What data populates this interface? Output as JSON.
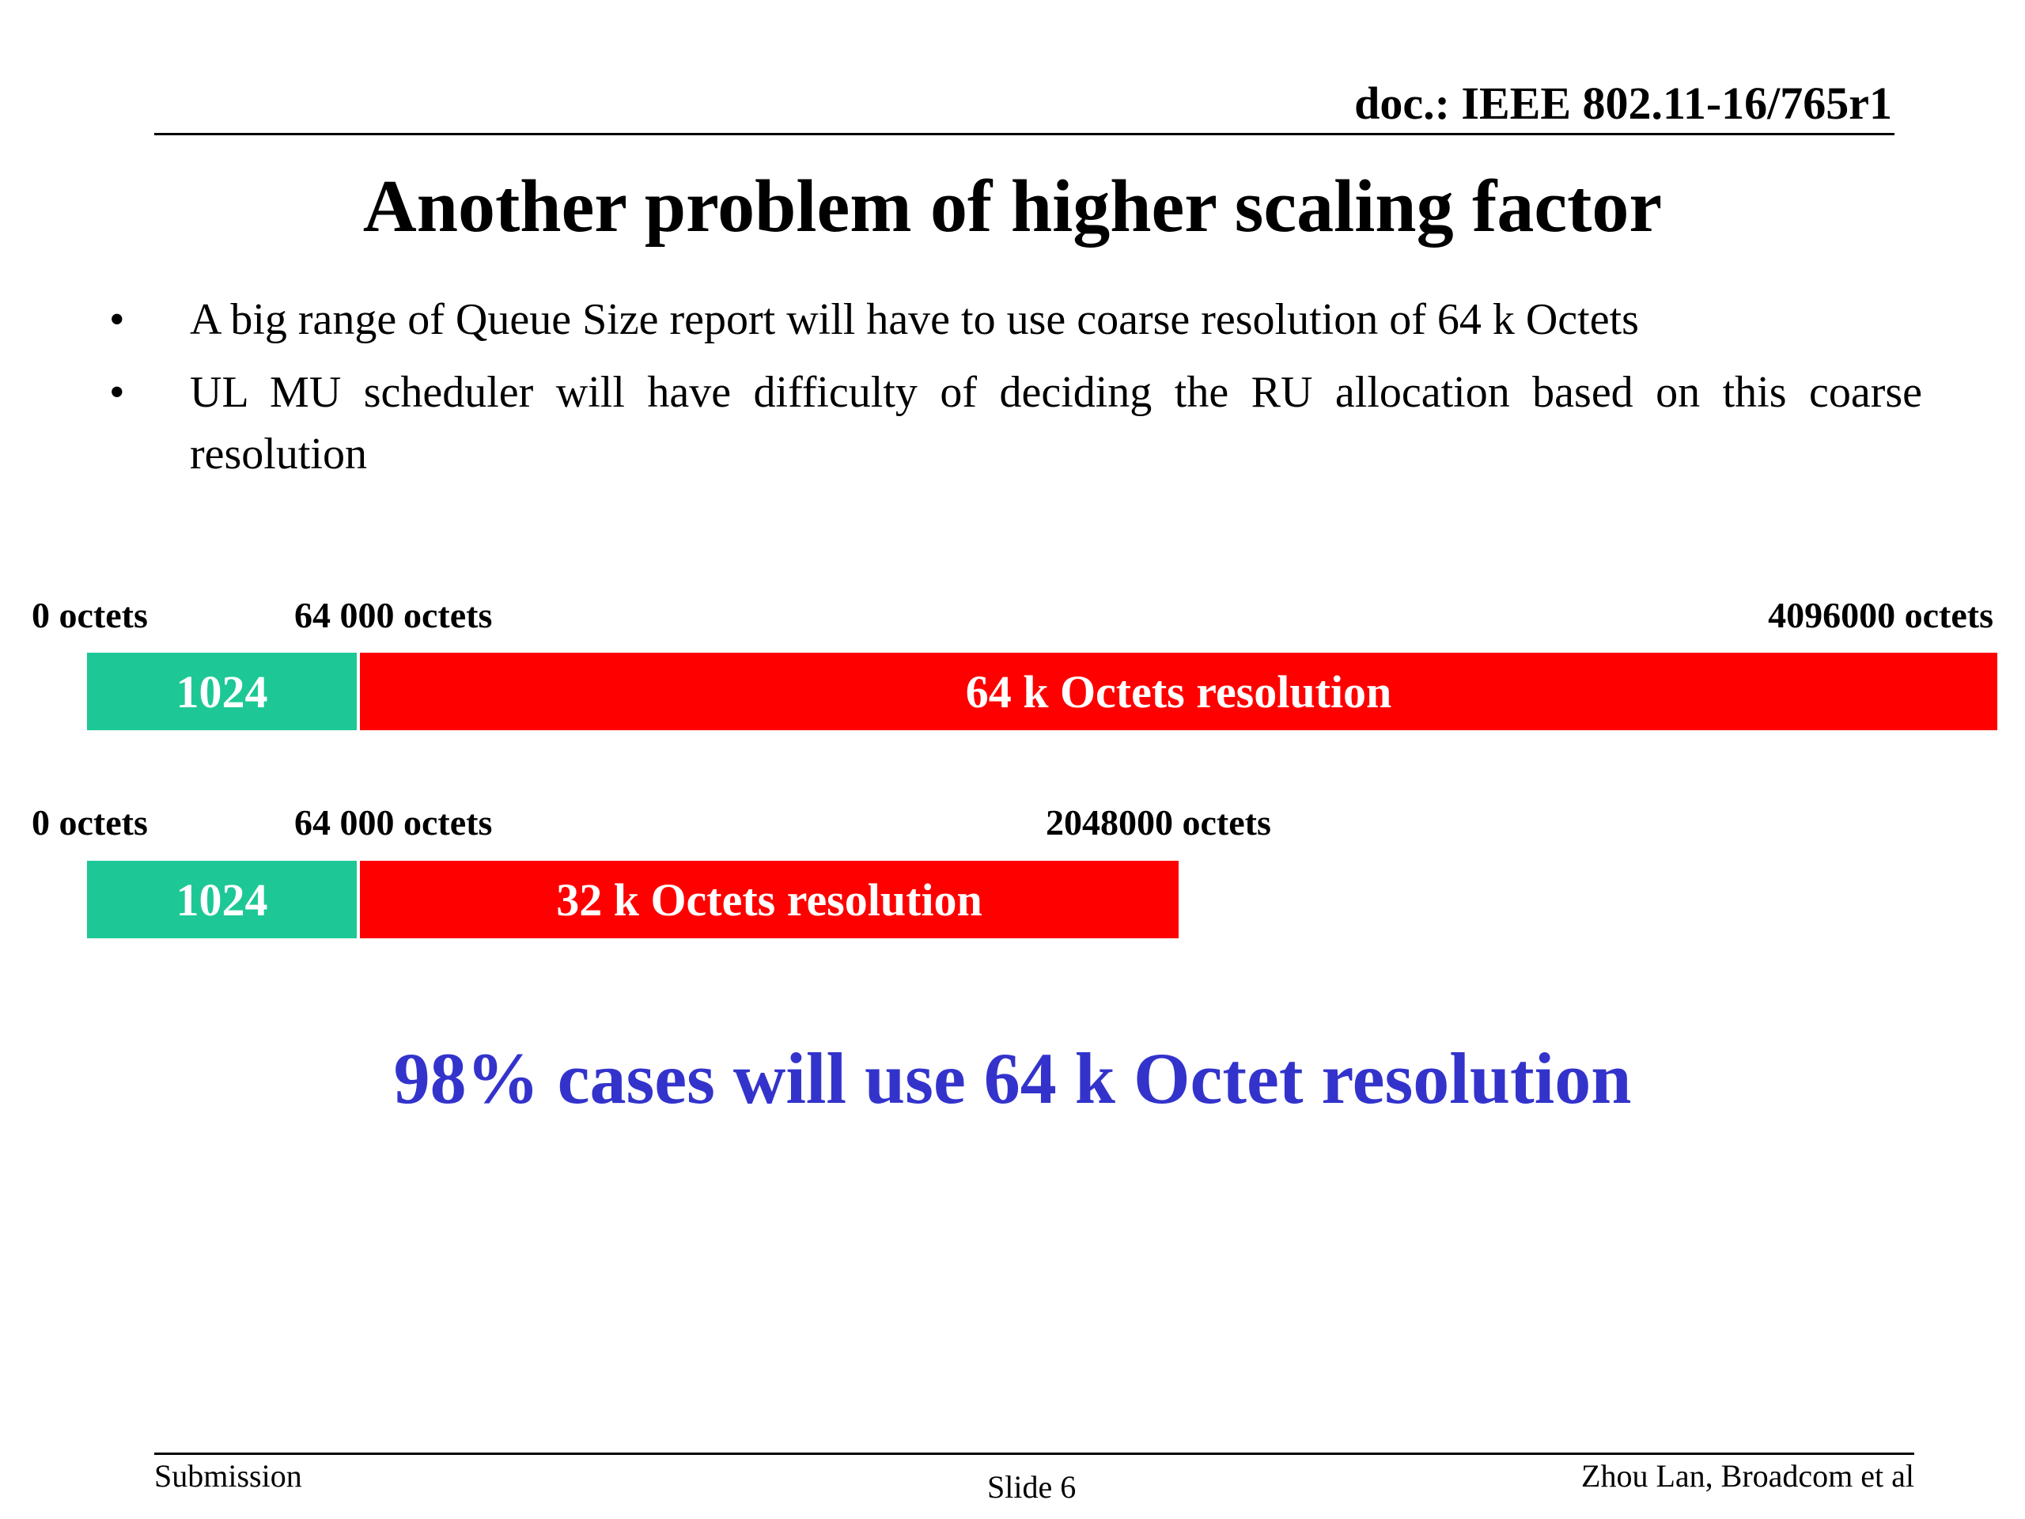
{
  "header": {
    "doc_id": "doc.: IEEE 802.11-16/765r1"
  },
  "title": "Another problem of higher scaling factor",
  "bullets": [
    "A big range of Queue Size report will have to use coarse resolution of 64 k Octets",
    "UL MU scheduler will have difficulty of deciding the RU allocation based on this coarse resolution"
  ],
  "diagram": {
    "bar1": {
      "label_start": "0 octets",
      "label_mid": "64 000 octets",
      "label_end": "4096000 octets",
      "segment_low": "1024",
      "segment_high": "64 k Octets resolution"
    },
    "bar2": {
      "label_start": "0 octets",
      "label_mid": "64 000 octets",
      "label_end": "2048000 octets",
      "segment_low": "1024",
      "segment_high": "32 k Octets resolution"
    },
    "colors": {
      "low_segment": "#1dc896",
      "high_segment": "#ff0000"
    }
  },
  "conclusion": "98% cases will use 64 k Octet resolution",
  "conclusion_color": "#3333cc",
  "footer": {
    "left": "Submission",
    "center": "Slide 6",
    "right": "Zhou Lan, Broadcom et al"
  }
}
